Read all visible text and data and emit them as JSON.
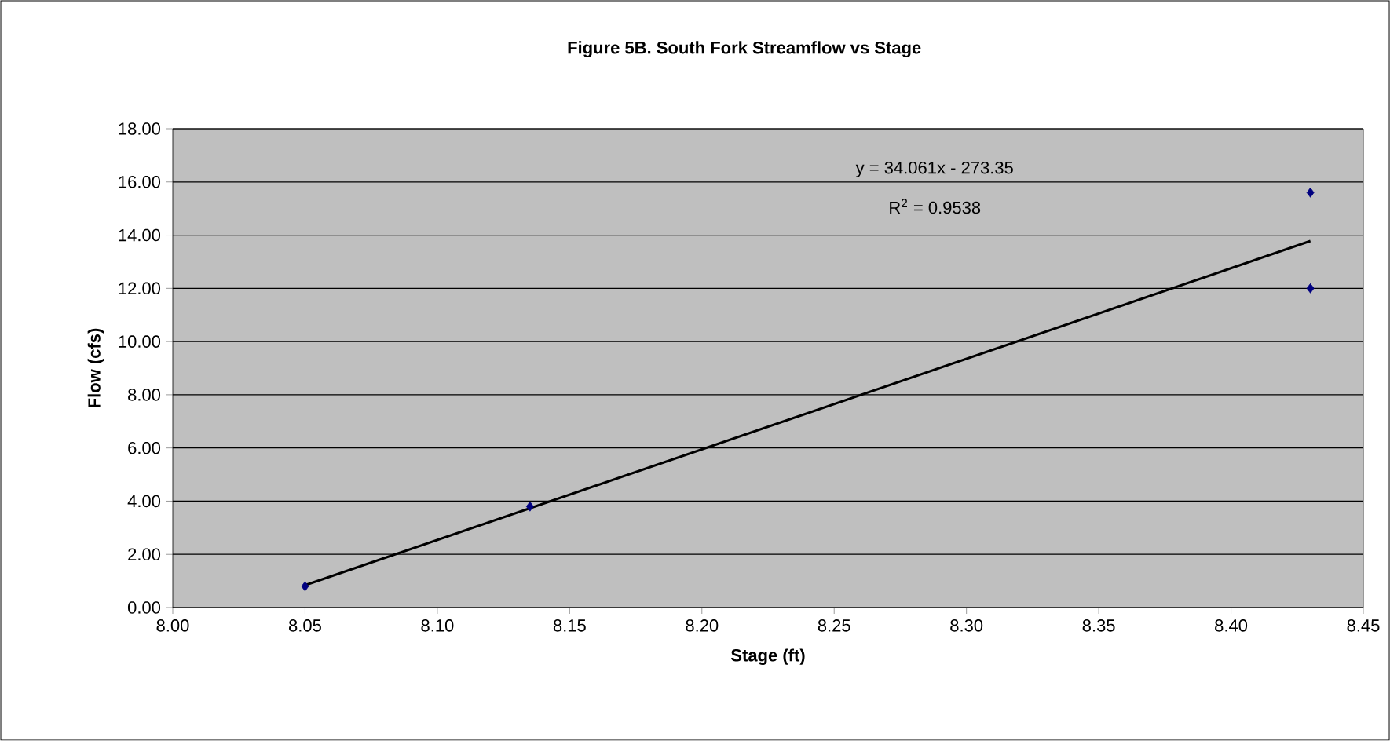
{
  "chart_data": {
    "type": "scatter",
    "title": "Figure 5B. South Fork Streamflow vs Stage",
    "xlabel": "Stage (ft)",
    "ylabel": "Flow (cfs)",
    "annotations": [
      "y = 34.061x - 273.35",
      "R$^{2}$ = 0.9538"
    ],
    "x": [
      8.05,
      8.135,
      8.43,
      8.43
    ],
    "series": [
      {
        "color": "#000080",
        "marker": "diamond",
        "values": [
          0.8,
          3.8,
          15.6,
          12.0
        ]
      },
      {
        "type": "line",
        "color": "#000000",
        "marker": "none",
        "x": [
          8.05,
          8.43
        ],
        "values": [
          0.84,
          13.78
        ]
      }
    ],
    "xlim": [
      8.0,
      8.45
    ],
    "xticks": [
      {
        "value": 8.0,
        "label": "8.00"
      },
      {
        "value": 8.05,
        "label": "8.05"
      },
      {
        "value": 8.1,
        "label": "8.10"
      },
      {
        "value": 8.15,
        "label": "8.15"
      },
      {
        "value": 8.2,
        "label": "8.20"
      },
      {
        "value": 8.25,
        "label": "8.25"
      },
      {
        "value": 8.3,
        "label": "8.30"
      },
      {
        "value": 8.35,
        "label": "8.35"
      },
      {
        "value": 8.4,
        "label": "8.40"
      },
      {
        "value": 8.45,
        "label": "8.45"
      }
    ],
    "ylim": [
      0,
      18
    ],
    "yticks": [
      {
        "value": 0,
        "label": "0.00"
      },
      {
        "value": 2,
        "label": "2.00"
      },
      {
        "value": 4,
        "label": "4.00"
      },
      {
        "value": 6,
        "label": "6.00"
      },
      {
        "value": 8,
        "label": "8.00"
      },
      {
        "value": 10,
        "label": "10.00"
      },
      {
        "value": 12,
        "label": "12.00"
      },
      {
        "value": 14,
        "label": "14.00"
      },
      {
        "value": 16,
        "label": "16.00"
      },
      {
        "value": 18,
        "label": "18.00"
      }
    ],
    "grid": "y"
  }
}
